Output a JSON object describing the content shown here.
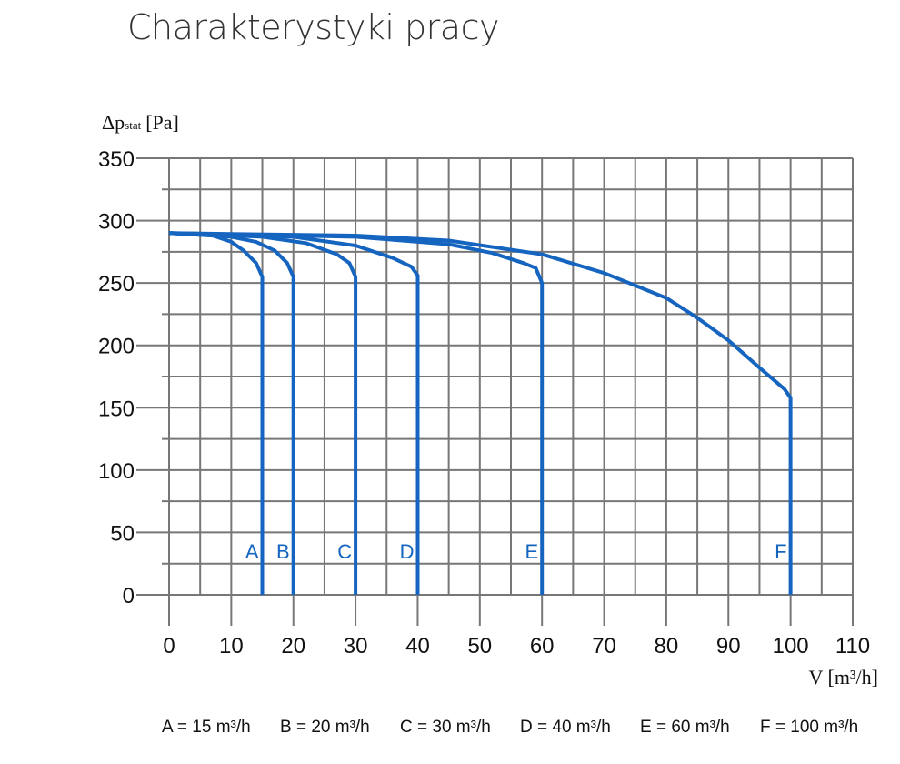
{
  "title": "Charakterystyki pracy",
  "chart_data": {
    "type": "line",
    "title": "Charakterystyki pracy",
    "ylabel_main": "Δp",
    "ylabel_sub": "stat",
    "ylabel_unit": "[Pa]",
    "xlabel": "V [m³/h]",
    "xlim": [
      0,
      110
    ],
    "ylim": [
      0,
      350
    ],
    "xticks": [
      0,
      10,
      20,
      30,
      40,
      50,
      60,
      70,
      80,
      90,
      100,
      110
    ],
    "yticks": [
      0,
      50,
      100,
      150,
      200,
      250,
      300,
      350
    ],
    "grid": true,
    "line_color": "#1565c0",
    "series": [
      {
        "name": "A",
        "points": [
          [
            0,
            290
          ],
          [
            7,
            288
          ],
          [
            10,
            283
          ],
          [
            12,
            276
          ],
          [
            14,
            266
          ],
          [
            15,
            255
          ],
          [
            15,
            0
          ]
        ]
      },
      {
        "name": "B",
        "points": [
          [
            0,
            290
          ],
          [
            10,
            287
          ],
          [
            14,
            283
          ],
          [
            17,
            276
          ],
          [
            19,
            266
          ],
          [
            20,
            255
          ],
          [
            20,
            0
          ]
        ]
      },
      {
        "name": "C",
        "points": [
          [
            0,
            290
          ],
          [
            15,
            287
          ],
          [
            22,
            282
          ],
          [
            27,
            273
          ],
          [
            29,
            266
          ],
          [
            30,
            255
          ],
          [
            30,
            0
          ]
        ]
      },
      {
        "name": "D",
        "points": [
          [
            0,
            290
          ],
          [
            20,
            287
          ],
          [
            30,
            280
          ],
          [
            36,
            270
          ],
          [
            39,
            263
          ],
          [
            40,
            256
          ],
          [
            40,
            0
          ]
        ]
      },
      {
        "name": "E",
        "points": [
          [
            0,
            290
          ],
          [
            30,
            287
          ],
          [
            45,
            281
          ],
          [
            52,
            274
          ],
          [
            57,
            266
          ],
          [
            59,
            262
          ],
          [
            60,
            250
          ],
          [
            60,
            0
          ]
        ]
      },
      {
        "name": "F",
        "points": [
          [
            0,
            290
          ],
          [
            30,
            288
          ],
          [
            45,
            284
          ],
          [
            60,
            273
          ],
          [
            70,
            258
          ],
          [
            80,
            238
          ],
          [
            85,
            222
          ],
          [
            90,
            204
          ],
          [
            95,
            182
          ],
          [
            99,
            165
          ],
          [
            100,
            158
          ],
          [
            100,
            0
          ]
        ]
      }
    ],
    "legend": [
      "A = 15 m³/h",
      "B = 20 m³/h",
      "C = 30 m³/h",
      "D = 40 m³/h",
      "E = 60 m³/h",
      "F = 100 m³/h"
    ]
  }
}
